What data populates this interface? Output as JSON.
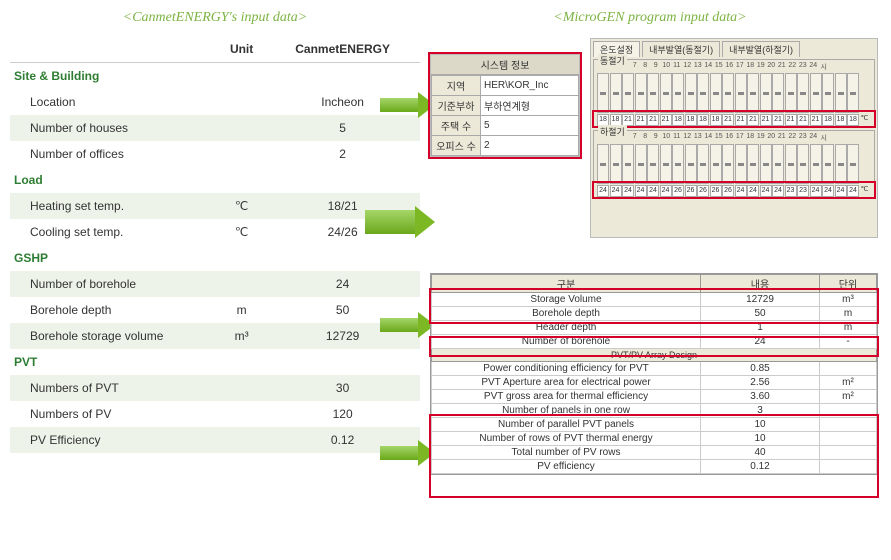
{
  "left": {
    "title": "<CanmetENERGY's input data>",
    "headers": {
      "unit": "Unit",
      "val": "CanmetENERGY"
    },
    "sections": {
      "site": "Site & Building",
      "load": "Load",
      "gshp": "GSHP",
      "pvt": "PVT"
    },
    "rows": {
      "location": {
        "label": "Location",
        "unit": "",
        "val": "Incheon"
      },
      "houses": {
        "label": "Number of houses",
        "unit": "",
        "val": "5"
      },
      "offices": {
        "label": "Number of offices",
        "unit": "",
        "val": "2"
      },
      "heat": {
        "label": "Heating set temp.",
        "unit": "℃",
        "val": "18/21"
      },
      "cool": {
        "label": "Cooling set temp.",
        "unit": "℃",
        "val": "24/26"
      },
      "boreholes": {
        "label": "Number of borehole",
        "unit": "",
        "val": "24"
      },
      "bdepth": {
        "label": "Borehole depth",
        "unit": "m",
        "val": "50"
      },
      "bstorage": {
        "label": "Borehole storage volume",
        "unit": "m³",
        "val": "12729"
      },
      "npvt": {
        "label": "Numbers of PVT",
        "unit": "",
        "val": "30"
      },
      "npv": {
        "label": "Numbers of PV",
        "unit": "",
        "val": "120"
      },
      "pveff": {
        "label": "PV Efficiency",
        "unit": "",
        "val": "0.12"
      }
    }
  },
  "right": {
    "title": "<MicroGEN program input data>",
    "sysinfo": {
      "header": "시스템 정보",
      "region_k": "지역",
      "region_v": "HER\\KOR_Inc",
      "load_k": "기준부하",
      "load_v": "부하연계형",
      "houses_k": "주택 수",
      "houses_v": "5",
      "offices_k": "오피스 수",
      "offices_v": "2"
    },
    "temp": {
      "tab1": "온도설정",
      "tab2": "내부발열(동절기)",
      "tab3": "내부발열(하절기)",
      "group1": "동절기",
      "group2": "하절기",
      "hours": [
        "0",
        "5",
        "6",
        "7",
        "8",
        "9",
        "10",
        "11",
        "12",
        "13",
        "14",
        "15",
        "16",
        "17",
        "18",
        "19",
        "20",
        "21",
        "22",
        "23",
        "24",
        "시"
      ],
      "row1": [
        "18",
        "18",
        "21",
        "21",
        "21",
        "21",
        "18",
        "18",
        "18",
        "18",
        "21",
        "21",
        "21",
        "21",
        "21",
        "21",
        "21",
        "21",
        "18",
        "18",
        "18"
      ],
      "row2": [
        "24",
        "24",
        "24",
        "24",
        "24",
        "24",
        "26",
        "26",
        "26",
        "26",
        "26",
        "24",
        "24",
        "24",
        "24",
        "23",
        "23",
        "24",
        "24",
        "24",
        "24"
      ],
      "unit": "℃"
    },
    "gshp": {
      "hdr": {
        "k": "구분",
        "v": "내용",
        "u": "단위"
      },
      "r1": {
        "k": "Storage Volume",
        "v": "12729",
        "u": "m³"
      },
      "r2": {
        "k": "Borehole depth",
        "v": "50",
        "u": "m"
      },
      "r3": {
        "k": "Header depth",
        "v": "1",
        "u": "m"
      },
      "r4": {
        "k": "Number of borehole",
        "v": "24",
        "u": "-"
      },
      "sect": "PVT/PV Array Design",
      "r5": {
        "k": "Power conditioning efficiency for PVT",
        "v": "0.85",
        "u": ""
      },
      "r6": {
        "k": "PVT Aperture area for electrical power",
        "v": "2.56",
        "u": "m²"
      },
      "r7": {
        "k": "PVT gross area for thermal efficiency",
        "v": "3.60",
        "u": "m²"
      },
      "r8": {
        "k": "Number of panels in one row",
        "v": "3",
        "u": ""
      },
      "r9": {
        "k": "Number of parallel PVT panels",
        "v": "10",
        "u": ""
      },
      "r10": {
        "k": "Number of rows of PVT thermal energy",
        "v": "10",
        "u": ""
      },
      "r11": {
        "k": "Total number of PV rows",
        "v": "40",
        "u": ""
      },
      "r12": {
        "k": "PV efficiency",
        "v": "0.12",
        "u": ""
      }
    }
  },
  "colors": {
    "green_text": "#7cb342",
    "shade": "#eef3e9",
    "red": "#d4002a",
    "panel": "#ece9d8"
  }
}
